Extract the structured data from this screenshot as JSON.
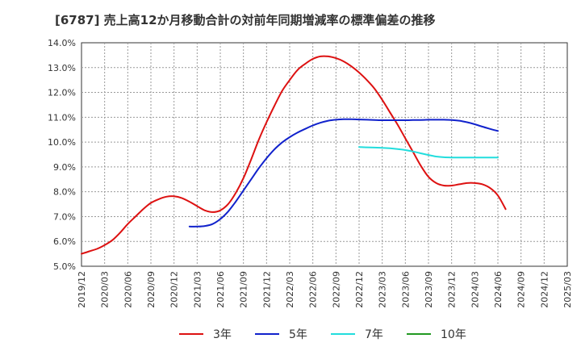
{
  "chart_data": {
    "type": "line",
    "title": "[6787]  売上高12か月移動合計の対前年同期増減率の標準偏差の推移",
    "xlabel": "",
    "ylabel": "",
    "ylim": [
      5.0,
      14.0
    ],
    "y_ticks": [
      "5.0%",
      "6.0%",
      "7.0%",
      "8.0%",
      "9.0%",
      "10.0%",
      "11.0%",
      "12.0%",
      "13.0%",
      "14.0%"
    ],
    "x_ticks": [
      "2019/12",
      "2020/03",
      "2020/06",
      "2020/09",
      "2020/12",
      "2021/03",
      "2021/06",
      "2021/09",
      "2021/12",
      "2022/03",
      "2022/06",
      "2022/09",
      "2022/12",
      "2023/03",
      "2023/06",
      "2023/09",
      "2023/12",
      "2024/03",
      "2024/06",
      "2024/09",
      "2024/12",
      "2025/03"
    ],
    "grid": true,
    "legend_position": "bottom",
    "series": [
      {
        "name": "3年",
        "color": "#dd1111",
        "points": [
          [
            "2019/12",
            5.5
          ],
          [
            "2020/01",
            5.6
          ],
          [
            "2020/02",
            5.7
          ],
          [
            "2020/03",
            5.85
          ],
          [
            "2020/04",
            6.05
          ],
          [
            "2020/05",
            6.35
          ],
          [
            "2020/06",
            6.7
          ],
          [
            "2020/07",
            7.0
          ],
          [
            "2020/08",
            7.3
          ],
          [
            "2020/09",
            7.55
          ],
          [
            "2020/10",
            7.7
          ],
          [
            "2020/11",
            7.8
          ],
          [
            "2020/12",
            7.82
          ],
          [
            "2021/01",
            7.75
          ],
          [
            "2021/02",
            7.6
          ],
          [
            "2021/03",
            7.42
          ],
          [
            "2021/04",
            7.25
          ],
          [
            "2021/05",
            7.18
          ],
          [
            "2021/06",
            7.25
          ],
          [
            "2021/07",
            7.5
          ],
          [
            "2021/08",
            7.95
          ],
          [
            "2021/09",
            8.55
          ],
          [
            "2021/10",
            9.3
          ],
          [
            "2021/11",
            10.1
          ],
          [
            "2021/12",
            10.8
          ],
          [
            "2022/01",
            11.45
          ],
          [
            "2022/02",
            12.05
          ],
          [
            "2022/03",
            12.5
          ],
          [
            "2022/04",
            12.9
          ],
          [
            "2022/05",
            13.15
          ],
          [
            "2022/06",
            13.35
          ],
          [
            "2022/07",
            13.45
          ],
          [
            "2022/08",
            13.45
          ],
          [
            "2022/09",
            13.38
          ],
          [
            "2022/10",
            13.25
          ],
          [
            "2022/11",
            13.05
          ],
          [
            "2022/12",
            12.8
          ],
          [
            "2023/01",
            12.5
          ],
          [
            "2023/02",
            12.15
          ],
          [
            "2023/03",
            11.7
          ],
          [
            "2023/04",
            11.2
          ],
          [
            "2023/05",
            10.7
          ],
          [
            "2023/06",
            10.15
          ],
          [
            "2023/07",
            9.6
          ],
          [
            "2023/08",
            9.05
          ],
          [
            "2023/09",
            8.6
          ],
          [
            "2023/10",
            8.35
          ],
          [
            "2023/11",
            8.25
          ],
          [
            "2023/12",
            8.25
          ],
          [
            "2024/01",
            8.3
          ],
          [
            "2024/02",
            8.35
          ],
          [
            "2024/03",
            8.35
          ],
          [
            "2024/04",
            8.3
          ],
          [
            "2024/05",
            8.15
          ],
          [
            "2024/06",
            7.85
          ],
          [
            "2024/07",
            7.3
          ]
        ]
      },
      {
        "name": "5年",
        "color": "#1122cc",
        "points": [
          [
            "2021/02",
            6.6
          ],
          [
            "2021/03",
            6.6
          ],
          [
            "2021/04",
            6.62
          ],
          [
            "2021/05",
            6.7
          ],
          [
            "2021/06",
            6.9
          ],
          [
            "2021/07",
            7.2
          ],
          [
            "2021/08",
            7.6
          ],
          [
            "2021/09",
            8.05
          ],
          [
            "2021/10",
            8.5
          ],
          [
            "2021/11",
            8.95
          ],
          [
            "2021/12",
            9.35
          ],
          [
            "2022/01",
            9.7
          ],
          [
            "2022/02",
            9.98
          ],
          [
            "2022/03",
            10.2
          ],
          [
            "2022/04",
            10.38
          ],
          [
            "2022/05",
            10.53
          ],
          [
            "2022/06",
            10.67
          ],
          [
            "2022/07",
            10.78
          ],
          [
            "2022/08",
            10.86
          ],
          [
            "2022/09",
            10.9
          ],
          [
            "2022/10",
            10.92
          ],
          [
            "2022/11",
            10.92
          ],
          [
            "2022/12",
            10.91
          ],
          [
            "2023/01",
            10.9
          ],
          [
            "2023/02",
            10.89
          ],
          [
            "2023/03",
            10.88
          ],
          [
            "2023/04",
            10.88
          ],
          [
            "2023/05",
            10.88
          ],
          [
            "2023/06",
            10.88
          ],
          [
            "2023/07",
            10.89
          ],
          [
            "2023/08",
            10.89
          ],
          [
            "2023/09",
            10.9
          ],
          [
            "2023/10",
            10.9
          ],
          [
            "2023/11",
            10.9
          ],
          [
            "2023/12",
            10.89
          ],
          [
            "2024/01",
            10.86
          ],
          [
            "2024/02",
            10.8
          ],
          [
            "2024/03",
            10.72
          ],
          [
            "2024/04",
            10.62
          ],
          [
            "2024/05",
            10.53
          ],
          [
            "2024/06",
            10.45
          ]
        ]
      },
      {
        "name": "7年",
        "color": "#22dddd",
        "points": [
          [
            "2022/12",
            9.8
          ],
          [
            "2023/01",
            9.79
          ],
          [
            "2023/02",
            9.78
          ],
          [
            "2023/03",
            9.77
          ],
          [
            "2023/04",
            9.75
          ],
          [
            "2023/05",
            9.72
          ],
          [
            "2023/06",
            9.68
          ],
          [
            "2023/07",
            9.62
          ],
          [
            "2023/08",
            9.55
          ],
          [
            "2023/09",
            9.48
          ],
          [
            "2023/10",
            9.42
          ],
          [
            "2023/11",
            9.39
          ],
          [
            "2023/12",
            9.38
          ],
          [
            "2024/01",
            9.38
          ],
          [
            "2024/02",
            9.38
          ],
          [
            "2024/03",
            9.38
          ],
          [
            "2024/04",
            9.38
          ],
          [
            "2024/05",
            9.38
          ],
          [
            "2024/06",
            9.38
          ]
        ]
      },
      {
        "name": "10年",
        "color": "#229922",
        "points": []
      }
    ]
  }
}
